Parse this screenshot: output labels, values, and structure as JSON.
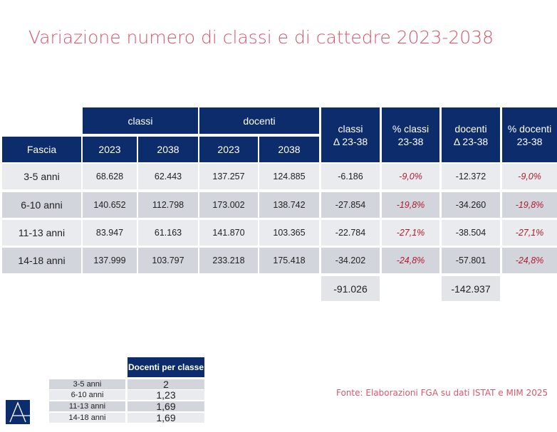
{
  "title": "Variazione numero di classi e di cattedre 2023-2038",
  "main_table": {
    "group_headers": {
      "classi": "classi",
      "docenti": "docenti"
    },
    "headers": [
      "Fascia",
      "2023",
      "2038",
      "2023",
      "2038"
    ],
    "delta_headers": [
      [
        "classi",
        "Δ 23-38"
      ],
      [
        "% classi",
        "23-38"
      ],
      [
        "docenti",
        "Δ 23-38"
      ],
      [
        "% docenti",
        "23-38"
      ]
    ],
    "rows": [
      [
        "3-5 anni",
        "68.628",
        "62.443",
        "137.257",
        "124.885",
        "-6.186",
        "-9,0%",
        "-12.372",
        "-9,0%"
      ],
      [
        "6-10 anni",
        "140.652",
        "112.798",
        "173.002",
        "138.742",
        "-27.854",
        "-19,8%",
        "-34.260",
        "-19,8%"
      ],
      [
        "11-13 anni",
        "83.947",
        "61.163",
        "141.870",
        "103.365",
        "-22.784",
        "-27,1%",
        "-38.504",
        "-27,1%"
      ],
      [
        "14-18 anni",
        "137.999",
        "103.797",
        "233.218",
        "175.418",
        "-34.202",
        "-24,8%",
        "-57.801",
        "-24,8%"
      ]
    ],
    "totals": {
      "classi": "-91.026",
      "docenti": "-142.937"
    }
  },
  "ratio_table": {
    "header": "Docenti per classe",
    "rows": [
      [
        "3-5 anni",
        "2"
      ],
      [
        "6-10 anni",
        "1,23"
      ],
      [
        "11-13 anni",
        "1,69"
      ],
      [
        "14-18 anni",
        "1,69"
      ]
    ]
  },
  "source": "Fonte: Elaborazioni FGA su dati ISTAT e MIM 2025",
  "colors": {
    "navy": "#0d2c6c",
    "title": "#d9566a",
    "negative": "#b01c2e"
  }
}
